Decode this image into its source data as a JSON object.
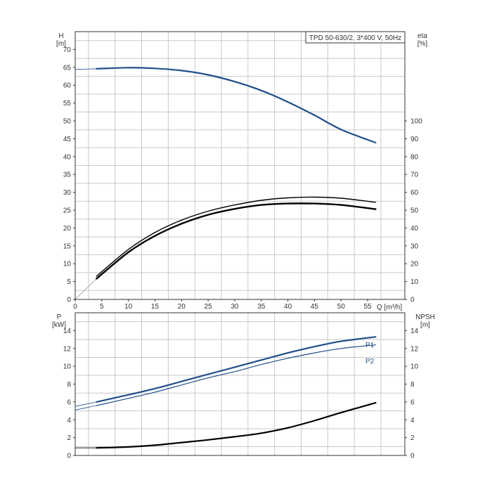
{
  "chart_data": [
    {
      "type": "line",
      "title": "TPD 50-630/2, 3*400 V, 50Hz",
      "xlabel": "Q [m³/h]",
      "ylabel": "H",
      "ylabel_unit": "[m]",
      "ylabel_right": "eta",
      "ylabel_right_unit": "[%]",
      "xlim": [
        0,
        62
      ],
      "ylim": [
        0,
        75
      ],
      "ylim_right": [
        0,
        150
      ],
      "xticks": [
        0,
        5,
        10,
        15,
        20,
        25,
        30,
        35,
        40,
        45,
        50,
        55
      ],
      "yticks": [
        0,
        5,
        10,
        15,
        20,
        25,
        30,
        35,
        40,
        45,
        50,
        55,
        60,
        65,
        70
      ],
      "yticks_right": [
        0,
        10,
        20,
        30,
        40,
        50,
        60,
        70,
        80,
        90,
        100
      ],
      "grid": true,
      "series": [
        {
          "axis": "left",
          "color": "#1f4e89",
          "width": 2.2,
          "x": [
            4,
            10,
            15,
            20,
            25,
            30,
            35,
            40,
            45,
            50,
            56.5
          ],
          "values": [
            64.6,
            64.9,
            64.7,
            64.1,
            62.9,
            61.0,
            58.5,
            55.3,
            51.6,
            47.6,
            43.9
          ]
        },
        {
          "axis": "right",
          "color": "#000000",
          "width": 1.4,
          "x": [
            4,
            10,
            15,
            20,
            25,
            30,
            35,
            40,
            45,
            50,
            56.5
          ],
          "values": [
            13.0,
            28.0,
            37.5,
            44.4,
            49.4,
            52.9,
            55.5,
            56.9,
            57.3,
            56.7,
            54.4
          ]
        },
        {
          "axis": "right",
          "color": "#000000",
          "width": 2.4,
          "x": [
            4,
            10,
            15,
            20,
            25,
            30,
            35,
            40,
            45,
            50,
            56.5
          ],
          "values": [
            11.6,
            26.4,
            35.6,
            42.4,
            47.4,
            50.7,
            52.9,
            53.7,
            53.7,
            52.9,
            50.6
          ]
        }
      ],
      "extensions": [
        {
          "axis": "right",
          "color": "#999999",
          "x": [
            0,
            4
          ],
          "values": [
            0,
            11.6
          ]
        },
        {
          "axis": "left",
          "color": "#1f4e89",
          "x": [
            0,
            4
          ],
          "values": [
            64.4,
            64.6
          ]
        }
      ]
    },
    {
      "type": "line",
      "xlabel": "",
      "ylabel": "P",
      "ylabel_unit": "[kW]",
      "ylabel_right": "NPSH",
      "ylabel_right_unit": "[m]",
      "xlim": [
        0,
        62
      ],
      "ylim": [
        0,
        16
      ],
      "ylim_right": [
        0,
        16
      ],
      "yticks": [
        0,
        2,
        4,
        6,
        8,
        10,
        12,
        14
      ],
      "yticks_right": [
        0,
        2,
        4,
        6,
        8,
        10,
        12,
        14
      ],
      "grid": true,
      "series": [
        {
          "name": "P1",
          "axis": "left",
          "color": "#1f4e89",
          "width": 2.2,
          "x": [
            4,
            10,
            15,
            20,
            25,
            30,
            35,
            40,
            45,
            50,
            56.5
          ],
          "values": [
            6.0,
            6.8,
            7.5,
            8.3,
            9.1,
            9.9,
            10.7,
            11.5,
            12.2,
            12.8,
            13.3
          ]
        },
        {
          "name": "P2",
          "axis": "left",
          "color": "#1f4e89",
          "width": 1.2,
          "x": [
            4,
            10,
            15,
            20,
            25,
            30,
            35,
            40,
            45,
            50,
            56.5
          ],
          "values": [
            5.6,
            6.4,
            7.1,
            7.9,
            8.7,
            9.4,
            10.2,
            10.9,
            11.5,
            12.0,
            12.4
          ]
        },
        {
          "axis": "right",
          "color": "#000000",
          "width": 2.2,
          "x": [
            4,
            10,
            15,
            20,
            25,
            30,
            35,
            40,
            45,
            50,
            56.5
          ],
          "values": [
            0.85,
            0.95,
            1.15,
            1.45,
            1.75,
            2.1,
            2.5,
            3.1,
            3.9,
            4.8,
            5.9
          ]
        }
      ],
      "extensions": [
        {
          "axis": "left",
          "color": "#1f4e89",
          "x": [
            0,
            4
          ],
          "values": [
            5.5,
            6.0
          ]
        },
        {
          "axis": "left",
          "color": "#1f4e89",
          "x": [
            0,
            4
          ],
          "values": [
            5.1,
            5.6
          ]
        },
        {
          "axis": "right",
          "color": "#000000",
          "x": [
            0,
            4
          ],
          "values": [
            0.85,
            0.85
          ]
        }
      ]
    }
  ]
}
